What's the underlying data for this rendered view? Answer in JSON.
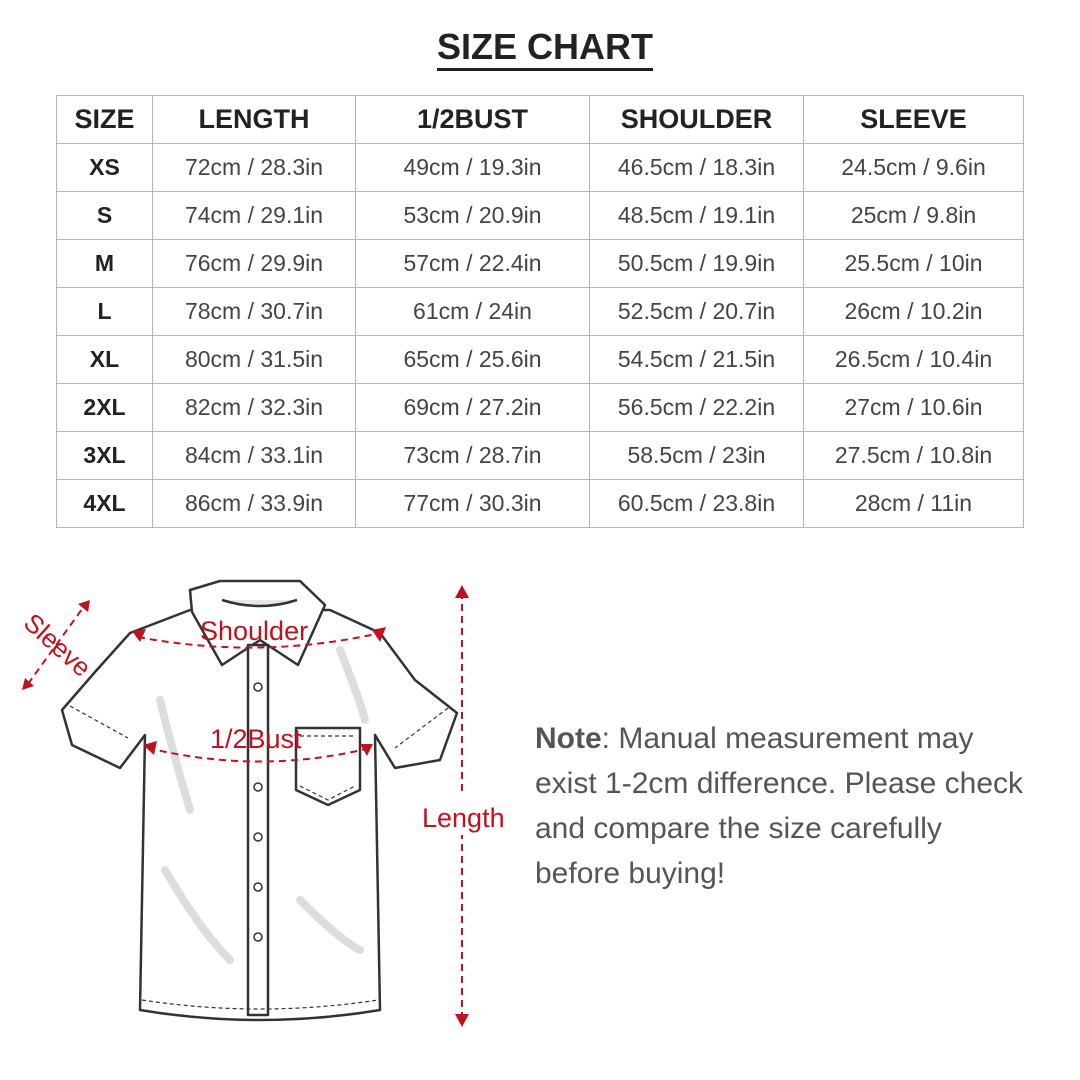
{
  "title": "SIZE CHART",
  "table": {
    "headers": [
      "SIZE",
      "LENGTH",
      "1/2BUST",
      "SHOULDER",
      "SLEEVE"
    ],
    "rows": [
      [
        "XS",
        "72cm / 28.3in",
        "49cm / 19.3in",
        "46.5cm / 18.3in",
        "24.5cm / 9.6in"
      ],
      [
        "S",
        "74cm / 29.1in",
        "53cm / 20.9in",
        "48.5cm / 19.1in",
        "25cm / 9.8in"
      ],
      [
        "M",
        "76cm / 29.9in",
        "57cm / 22.4in",
        "50.5cm / 19.9in",
        "25.5cm / 10in"
      ],
      [
        "L",
        "78cm / 30.7in",
        "61cm / 24in",
        "52.5cm / 20.7in",
        "26cm / 10.2in"
      ],
      [
        "XL",
        "80cm / 31.5in",
        "65cm / 25.6in",
        "54.5cm / 21.5in",
        "26.5cm / 10.4in"
      ],
      [
        "2XL",
        "82cm / 32.3in",
        "69cm / 27.2in",
        "56.5cm / 22.2in",
        "27cm / 10.6in"
      ],
      [
        "3XL",
        "84cm / 33.1in",
        "73cm / 28.7in",
        "58.5cm / 23in",
        "27.5cm / 10.8in"
      ],
      [
        "4XL",
        "86cm / 33.9in",
        "77cm / 30.3in",
        "60.5cm / 23.8in",
        "28cm / 11in"
      ]
    ]
  },
  "diagram": {
    "sleeve": "Sleeve",
    "shoulder": "Shoulder",
    "bust": "1/2Bust",
    "length": "Length",
    "accent": "#c0121e"
  },
  "note": {
    "label": "Note",
    "text": ": Manual measurement may exist 1-2cm difference. Please check and compare the size carefully before buying!"
  }
}
